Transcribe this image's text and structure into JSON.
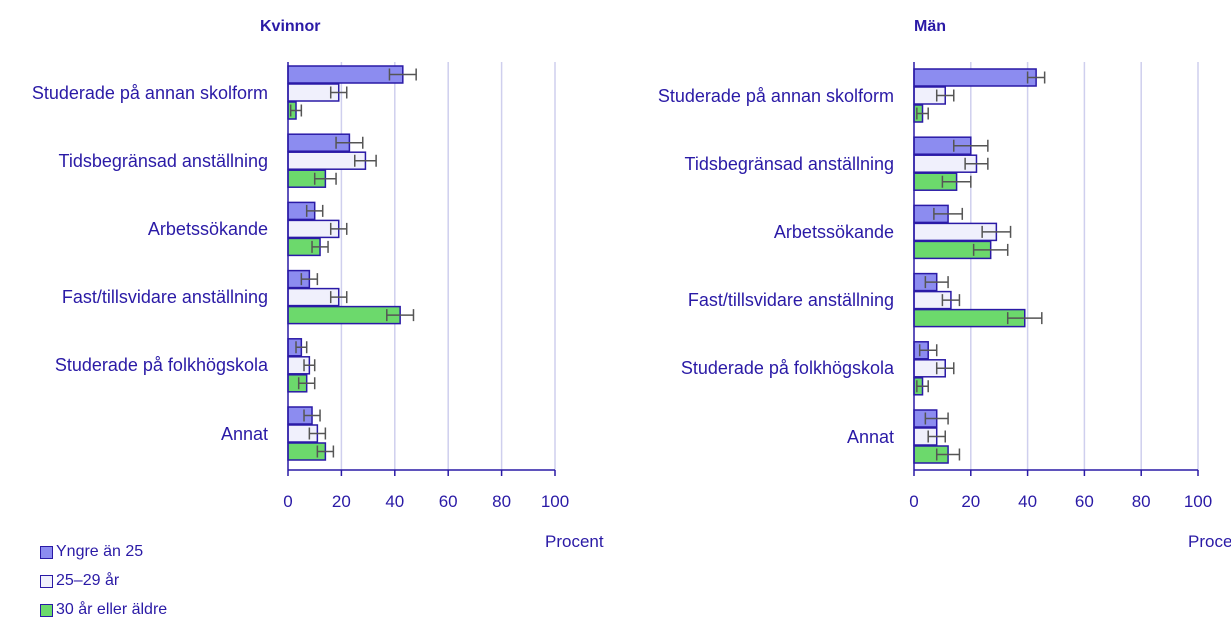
{
  "chart_data": [
    {
      "type": "bar",
      "orientation": "horizontal",
      "title": "Kvinnor",
      "xlabel": "Procent",
      "categories": [
        "Studerade på annan skolform",
        "Tidsbegränsad anställning",
        "Arbetssökande",
        "Fast/tillsvidare anställning",
        "Studerade på folkhögskola",
        "Annat"
      ],
      "series": [
        {
          "name": "Yngre än 25",
          "color": "#8c8cf0",
          "values": [
            43,
            23,
            10,
            8,
            5,
            9
          ],
          "errors": [
            5,
            5,
            3,
            3,
            2,
            3
          ]
        },
        {
          "name": "25–29 år",
          "color": "#f0f0fc",
          "values": [
            19,
            29,
            19,
            19,
            8,
            11
          ],
          "errors": [
            3,
            4,
            3,
            3,
            2,
            3
          ]
        },
        {
          "name": "30 år eller äldre",
          "color": "#6cd96c",
          "values": [
            3,
            14,
            12,
            42,
            7,
            14
          ],
          "errors": [
            2,
            4,
            3,
            5,
            3,
            3
          ]
        }
      ],
      "xlim": [
        0,
        100
      ],
      "xticks": [
        0,
        20,
        40,
        60,
        80,
        100
      ],
      "grid": true
    },
    {
      "type": "bar",
      "orientation": "horizontal",
      "title": "Män",
      "xlabel": "Procent",
      "categories": [
        "Studerade på annan skolform",
        "Tidsbegränsad anställning",
        "Arbetssökande",
        "Fast/tillsvidare anställning",
        "Studerade på folkhögskola",
        "Annat"
      ],
      "series": [
        {
          "color": "#8c8cf0",
          "values": [
            43,
            20,
            12,
            8,
            5,
            8
          ],
          "errors": [
            3,
            6,
            5,
            4,
            3,
            4
          ]
        },
        {
          "color": "#f0f0fc",
          "values": [
            11,
            22,
            29,
            13,
            11,
            8
          ],
          "errors": [
            3,
            4,
            5,
            3,
            3,
            3
          ]
        },
        {
          "color": "#6cd96c",
          "values": [
            3,
            15,
            27,
            39,
            3,
            12
          ],
          "errors": [
            2,
            5,
            6,
            6,
            2,
            4
          ]
        }
      ],
      "xlim": [
        0,
        100
      ],
      "xticks": [
        0,
        20,
        40,
        60,
        80,
        100
      ],
      "grid": true
    }
  ]
}
